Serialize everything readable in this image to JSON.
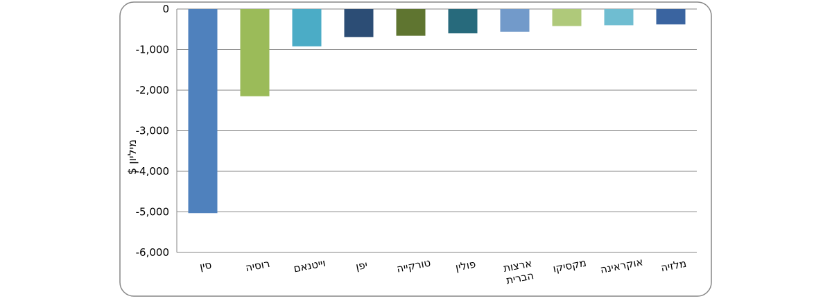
{
  "chart_data": {
    "type": "bar",
    "categories": [
      "סין",
      "רוסיה",
      "וייטנאם",
      "יפן",
      "טורקייה",
      "פולין",
      "ארצות הברית",
      "מקסיקו",
      "אוקראינה",
      "מלזיה"
    ],
    "values": [
      -5030,
      -2150,
      -920,
      -690,
      -660,
      -600,
      -560,
      -420,
      -400,
      -380
    ],
    "colors": [
      "#4f81bd",
      "#9bbb59",
      "#4bacc6",
      "#2c4d75",
      "#5f7530",
      "#276a7c",
      "#729aca",
      "#afc97a",
      "#6fbdd1",
      "#3a64a0"
    ],
    "ylabel": "מיליון $",
    "ylim": [
      -6000,
      0
    ],
    "yticks": [
      0,
      -1000,
      -2000,
      -3000,
      -4000,
      -5000,
      -6000
    ],
    "ytick_labels": [
      "0",
      "-1,000",
      "-2,000",
      "-3,000",
      "-4,000",
      "-5,000",
      "-6,000"
    ],
    "grid": true,
    "frame_color": "#868686",
    "grid_color": "#868686"
  }
}
